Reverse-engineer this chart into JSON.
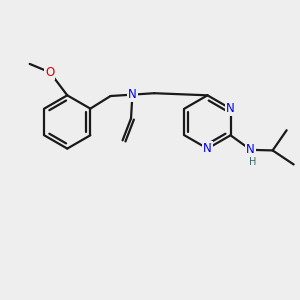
{
  "bg_color": "#eeeeee",
  "bond_color": "#1a1a1a",
  "N_color": "#0000ee",
  "O_color": "#dd0000",
  "H_color": "#336666",
  "font_size": 8.5,
  "line_width": 1.6,
  "fig_size": [
    3.0,
    3.0
  ],
  "dpi": 100,
  "xlim": [
    -1.0,
    9.5
  ],
  "ylim": [
    -3.5,
    4.5
  ]
}
